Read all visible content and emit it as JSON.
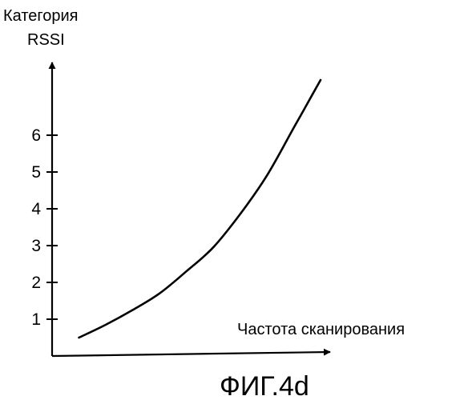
{
  "chart_data": {
    "type": "line",
    "ylabel_lines": [
      "Категория",
      "RSSI"
    ],
    "xlabel": "Частота сканирования",
    "y_ticks": [
      "1",
      "2",
      "3",
      "4",
      "5",
      "6"
    ],
    "ylim": [
      0,
      7.3
    ],
    "x_ticks": [],
    "series": [
      {
        "x": [
          0.1,
          0.2,
          0.3,
          0.4,
          0.5,
          0.6,
          0.7,
          0.8,
          0.9,
          0.95,
          1.0
        ],
        "values": [
          0.5,
          0.85,
          1.25,
          1.7,
          2.3,
          2.95,
          3.85,
          4.9,
          6.2,
          6.85,
          7.5
        ]
      }
    ]
  },
  "caption": "ФИГ.4d"
}
